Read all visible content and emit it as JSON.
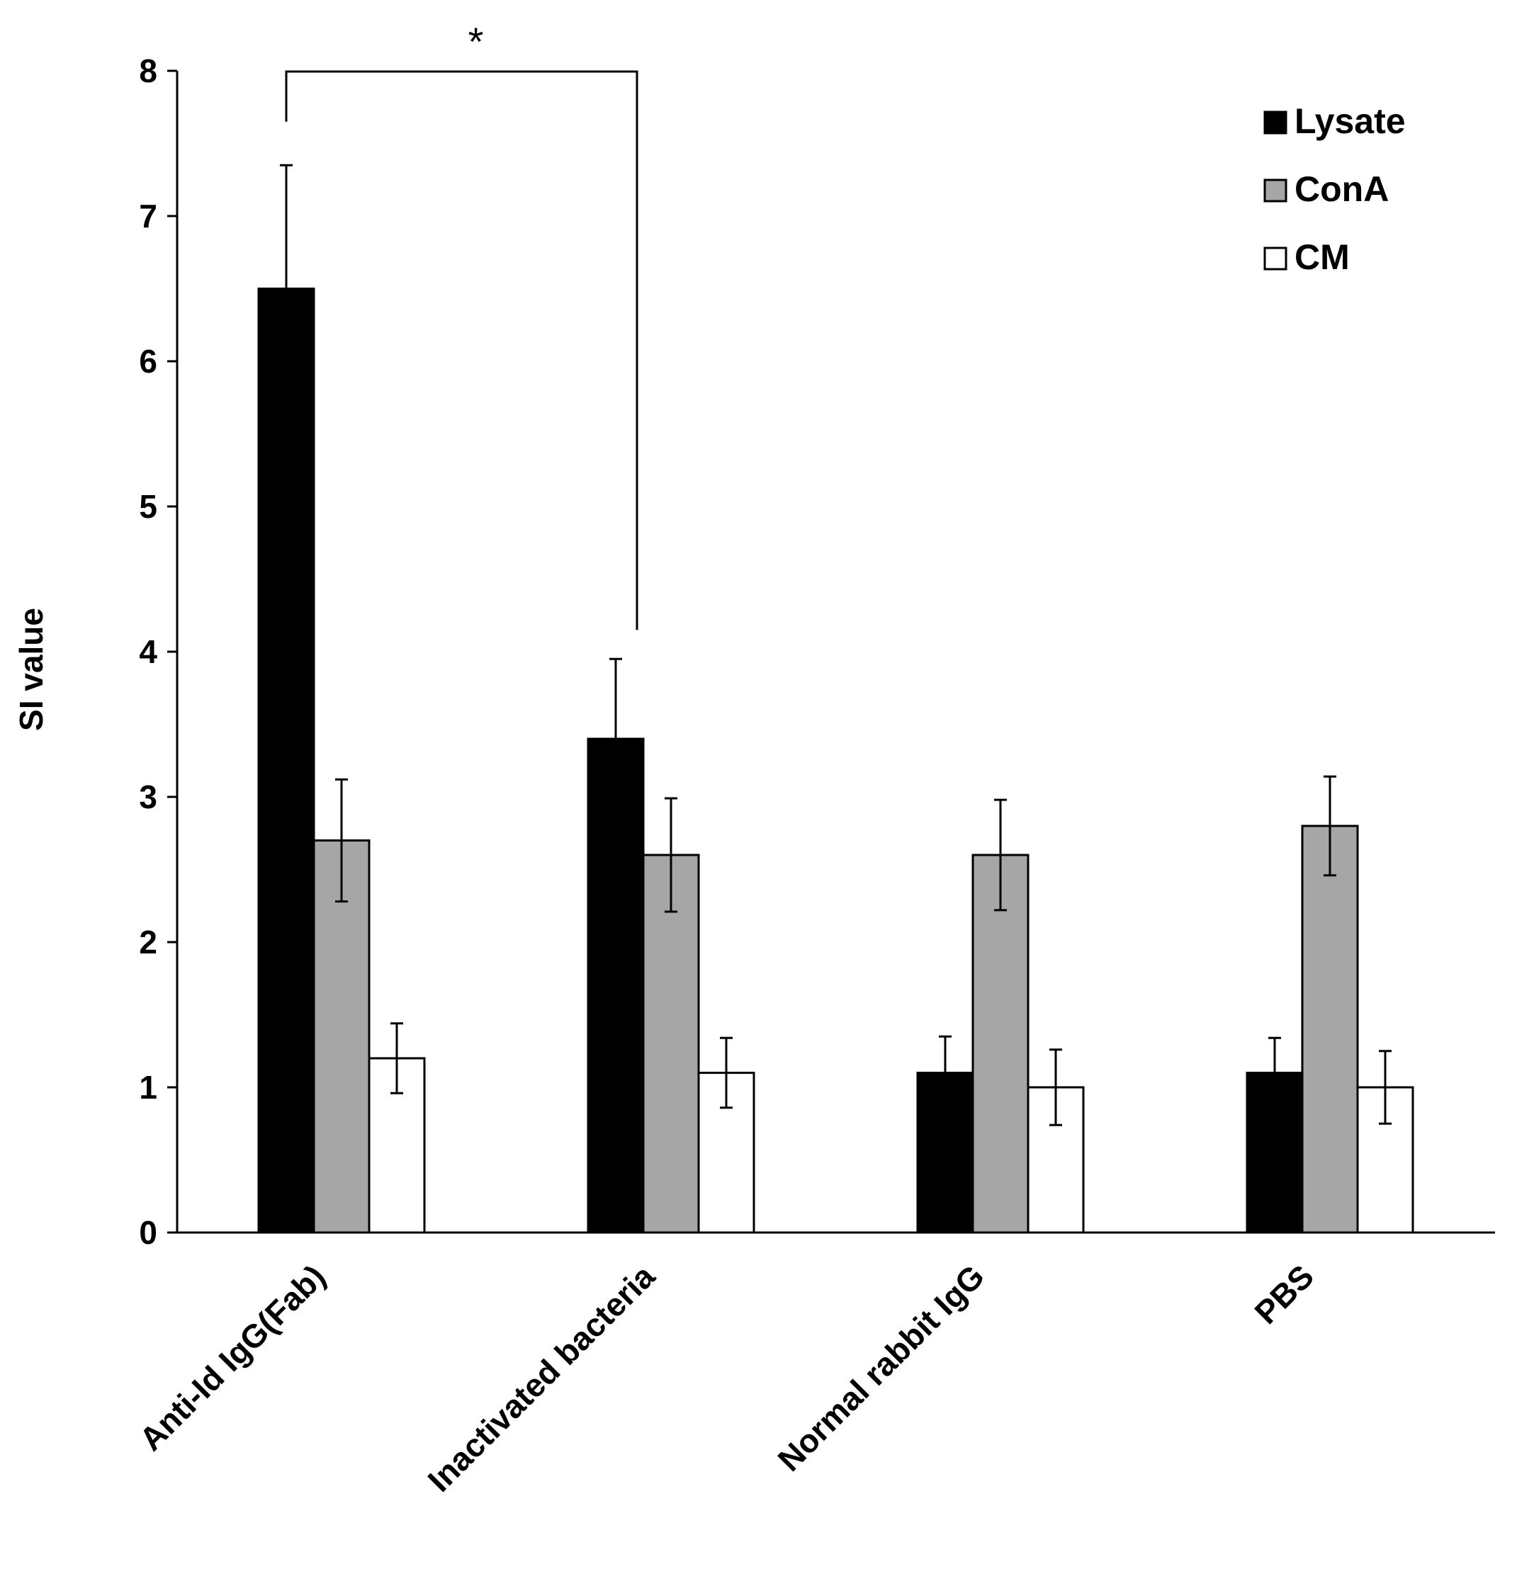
{
  "chart_data": {
    "type": "bar",
    "title": "",
    "xlabel": "",
    "ylabel": "SI value",
    "ylim": [
      0,
      8
    ],
    "yticks": [
      0,
      1,
      2,
      3,
      4,
      5,
      6,
      7,
      8
    ],
    "grid": false,
    "legend_position": "top-right",
    "categories": [
      "Anti-Id IgG(Fab)",
      "Inactivated bacteria",
      "Normal rabbit IgG",
      "PBS"
    ],
    "series": [
      {
        "name": "Lysate",
        "color": "#000000",
        "values": [
          6.5,
          3.4,
          1.1,
          1.1
        ],
        "errors": [
          0.85,
          0.55,
          0.25,
          0.24
        ]
      },
      {
        "name": "ConA",
        "color": "#a6a6a6",
        "values": [
          2.7,
          2.6,
          2.6,
          2.8
        ],
        "errors": [
          0.42,
          0.39,
          0.38,
          0.34
        ]
      },
      {
        "name": "CM",
        "color": "#ffffff",
        "values": [
          1.2,
          1.1,
          1.0,
          1.0
        ],
        "errors": [
          0.24,
          0.24,
          0.26,
          0.25
        ]
      }
    ],
    "annotations": [
      {
        "type": "significance",
        "label": "*",
        "from_category": 0,
        "to_category": 1,
        "series": "Lysate"
      }
    ]
  }
}
